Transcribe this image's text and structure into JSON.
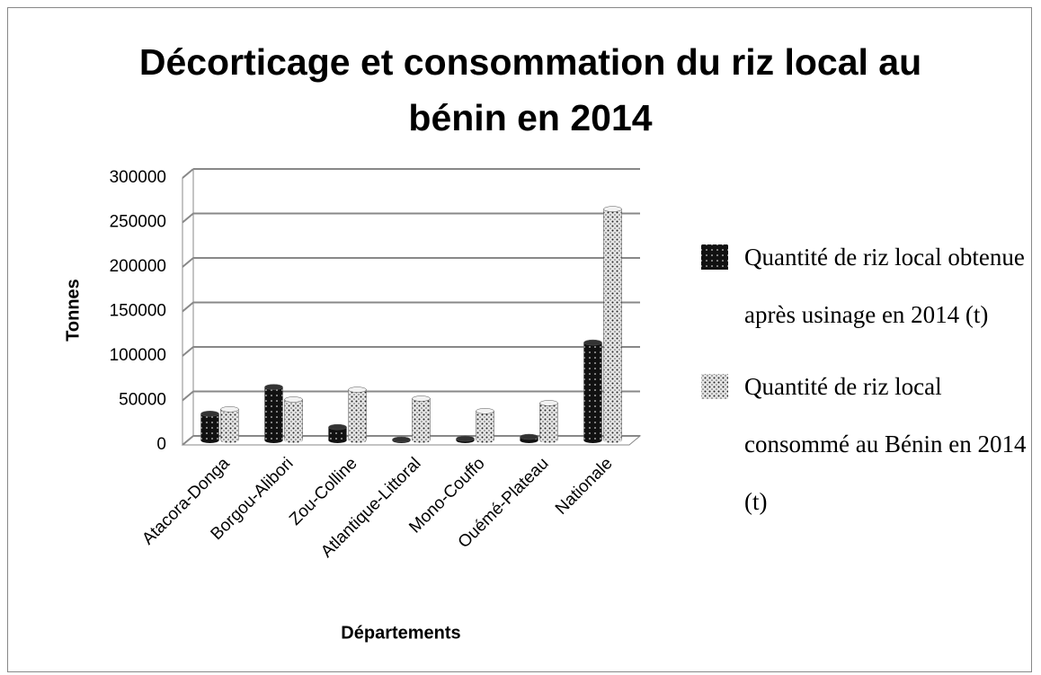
{
  "chart_data": {
    "type": "bar3d",
    "title": "Décorticage et consommation du riz local au bénin en 2014",
    "x_label": "Départements",
    "y_label": "Tonnes",
    "categories": [
      "Atacora-Donga",
      "Borgou-Alibori",
      "Zou-Colline",
      "Atlantique-Littoral",
      "Mono-Couffo",
      "Ouémé-Plateau",
      "Nationale"
    ],
    "series": [
      {
        "name": "Quantité de riz local obtenue après usinage en 2014 (t)",
        "color": "#111111",
        "values": [
          30000,
          60000,
          15000,
          1000,
          2000,
          4000,
          110000
        ]
      },
      {
        "name": "Quantité de riz local consommé au Bénin en 2014 (t)",
        "color": "#d9d9d9",
        "values": [
          35000,
          46000,
          57000,
          47000,
          33000,
          42000,
          260000
        ]
      }
    ],
    "ylim": [
      0,
      300000
    ],
    "yticks": [
      0,
      50000,
      100000,
      150000,
      200000,
      250000,
      300000
    ],
    "grid": true,
    "legend": "right"
  }
}
